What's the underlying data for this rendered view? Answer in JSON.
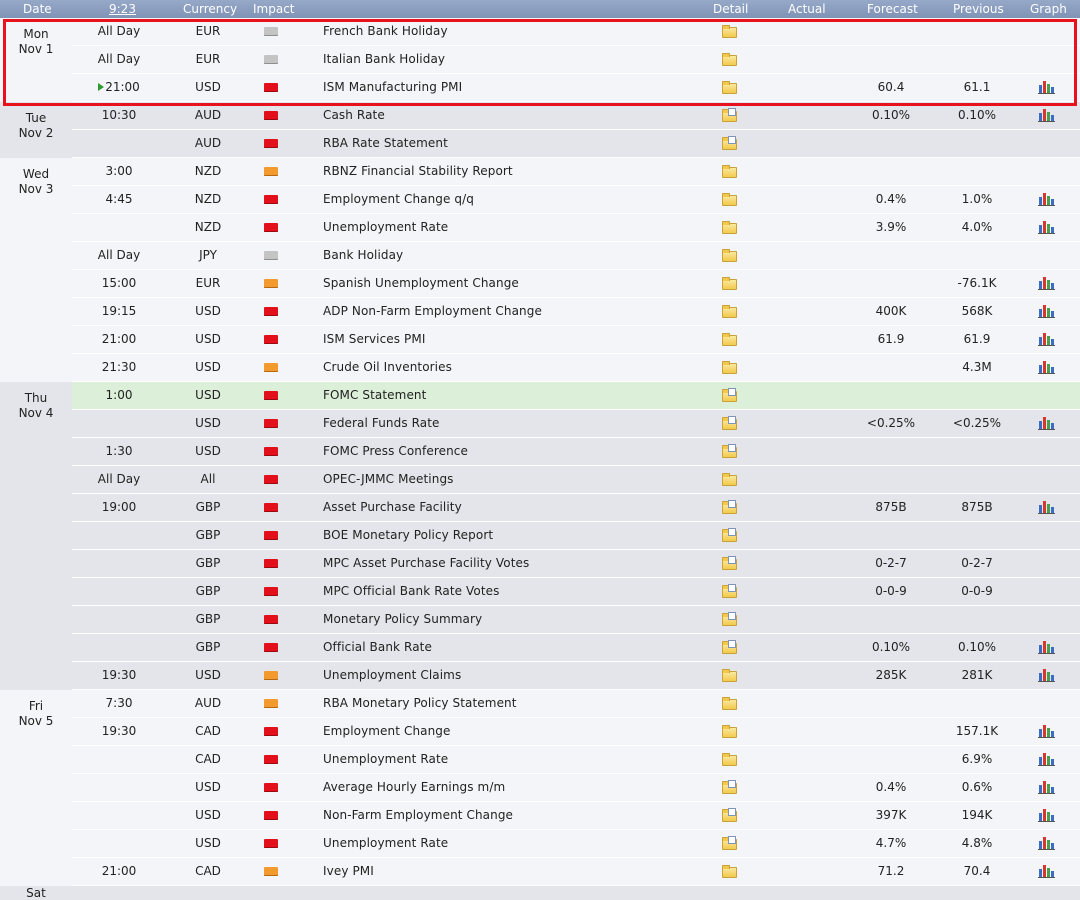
{
  "header": {
    "date": "Date",
    "time": "9:23",
    "currency": "Currency",
    "impact": "Impact",
    "detail": "Detail",
    "actual": "Actual",
    "forecast": "Forecast",
    "previous": "Previous",
    "graph": "Graph"
  },
  "icons": {
    "impact_colors": {
      "high": "#e2101a",
      "medium": "#f39a2e",
      "low": "#c4c4c4"
    },
    "detail": "folder-icon",
    "graph": "bar-chart-icon",
    "now": "play-icon"
  },
  "days": [
    {
      "dow": "Mon",
      "date": "Nov 1",
      "events": [
        {
          "time": "All Day",
          "currency": "EUR",
          "impact": "low",
          "event": "French Bank Holiday",
          "detail": "folder",
          "actual": "",
          "forecast": "",
          "previous": "",
          "graph": false
        },
        {
          "time": "All Day",
          "currency": "EUR",
          "impact": "low",
          "event": "Italian Bank Holiday",
          "detail": "folder",
          "actual": "",
          "forecast": "",
          "previous": "",
          "graph": false
        },
        {
          "time": "21:00",
          "now": true,
          "currency": "USD",
          "impact": "high",
          "event": "ISM Manufacturing PMI",
          "detail": "folder",
          "actual": "",
          "forecast": "60.4",
          "previous": "61.1",
          "graph": true
        }
      ]
    },
    {
      "dow": "Tue",
      "date": "Nov 2",
      "events": [
        {
          "time": "10:30",
          "currency": "AUD",
          "impact": "high",
          "event": "Cash Rate",
          "detail": "doc",
          "actual": "",
          "forecast": "0.10%",
          "previous": "0.10%",
          "graph": true
        },
        {
          "time": "",
          "currency": "AUD",
          "impact": "high",
          "event": "RBA Rate Statement",
          "detail": "doc",
          "actual": "",
          "forecast": "",
          "previous": "",
          "graph": false
        }
      ]
    },
    {
      "dow": "Wed",
      "date": "Nov 3",
      "events": [
        {
          "time": "3:00",
          "currency": "NZD",
          "impact": "medium",
          "event": "RBNZ Financial Stability Report",
          "detail": "folder",
          "actual": "",
          "forecast": "",
          "previous": "",
          "graph": false
        },
        {
          "time": "4:45",
          "currency": "NZD",
          "impact": "high",
          "event": "Employment Change q/q",
          "detail": "folder",
          "actual": "",
          "forecast": "0.4%",
          "previous": "1.0%",
          "graph": true
        },
        {
          "time": "",
          "currency": "NZD",
          "impact": "high",
          "event": "Unemployment Rate",
          "detail": "folder",
          "actual": "",
          "forecast": "3.9%",
          "previous": "4.0%",
          "graph": true
        },
        {
          "time": "All Day",
          "currency": "JPY",
          "impact": "low",
          "event": "Bank Holiday",
          "detail": "folder",
          "actual": "",
          "forecast": "",
          "previous": "",
          "graph": false
        },
        {
          "time": "15:00",
          "currency": "EUR",
          "impact": "medium",
          "event": "Spanish Unemployment Change",
          "detail": "folder",
          "actual": "",
          "forecast": "",
          "previous": "-76.1K",
          "graph": true
        },
        {
          "time": "19:15",
          "currency": "USD",
          "impact": "high",
          "event": "ADP Non-Farm Employment Change",
          "detail": "folder",
          "actual": "",
          "forecast": "400K",
          "previous": "568K",
          "graph": true
        },
        {
          "time": "21:00",
          "currency": "USD",
          "impact": "high",
          "event": "ISM Services PMI",
          "detail": "folder",
          "actual": "",
          "forecast": "61.9",
          "previous": "61.9",
          "graph": true
        },
        {
          "time": "21:30",
          "currency": "USD",
          "impact": "medium",
          "event": "Crude Oil Inventories",
          "detail": "folder",
          "actual": "",
          "forecast": "",
          "previous": "4.3M",
          "graph": true
        }
      ]
    },
    {
      "dow": "Thu",
      "date": "Nov 4",
      "events": [
        {
          "time": "1:00",
          "currency": "USD",
          "impact": "high",
          "event": "FOMC Statement",
          "detail": "doc",
          "actual": "",
          "forecast": "",
          "previous": "",
          "graph": false,
          "highlight": true
        },
        {
          "time": "",
          "currency": "USD",
          "impact": "high",
          "event": "Federal Funds Rate",
          "detail": "doc",
          "actual": "",
          "forecast": "<0.25%",
          "previous": "<0.25%",
          "graph": true
        },
        {
          "time": "1:30",
          "currency": "USD",
          "impact": "high",
          "event": "FOMC Press Conference",
          "detail": "doc",
          "actual": "",
          "forecast": "",
          "previous": "",
          "graph": false
        },
        {
          "time": "All Day",
          "currency": "All",
          "impact": "high",
          "event": "OPEC-JMMC Meetings",
          "detail": "folder",
          "actual": "",
          "forecast": "",
          "previous": "",
          "graph": false
        },
        {
          "time": "19:00",
          "currency": "GBP",
          "impact": "high",
          "event": "Asset Purchase Facility",
          "detail": "doc",
          "actual": "",
          "forecast": "875B",
          "previous": "875B",
          "graph": true
        },
        {
          "time": "",
          "currency": "GBP",
          "impact": "high",
          "event": "BOE Monetary Policy Report",
          "detail": "doc",
          "actual": "",
          "forecast": "",
          "previous": "",
          "graph": false
        },
        {
          "time": "",
          "currency": "GBP",
          "impact": "high",
          "event": "MPC Asset Purchase Facility Votes",
          "detail": "doc",
          "actual": "",
          "forecast": "0-2-7",
          "previous": "0-2-7",
          "graph": false
        },
        {
          "time": "",
          "currency": "GBP",
          "impact": "high",
          "event": "MPC Official Bank Rate Votes",
          "detail": "doc",
          "actual": "",
          "forecast": "0-0-9",
          "previous": "0-0-9",
          "graph": false
        },
        {
          "time": "",
          "currency": "GBP",
          "impact": "high",
          "event": "Monetary Policy Summary",
          "detail": "doc",
          "actual": "",
          "forecast": "",
          "previous": "",
          "graph": false
        },
        {
          "time": "",
          "currency": "GBP",
          "impact": "high",
          "event": "Official Bank Rate",
          "detail": "doc",
          "actual": "",
          "forecast": "0.10%",
          "previous": "0.10%",
          "graph": true
        },
        {
          "time": "19:30",
          "currency": "USD",
          "impact": "medium",
          "event": "Unemployment Claims",
          "detail": "folder",
          "actual": "",
          "forecast": "285K",
          "previous": "281K",
          "graph": true
        }
      ]
    },
    {
      "dow": "Fri",
      "date": "Nov 5",
      "events": [
        {
          "time": "7:30",
          "currency": "AUD",
          "impact": "medium",
          "event": "RBA Monetary Policy Statement",
          "detail": "folder",
          "actual": "",
          "forecast": "",
          "previous": "",
          "graph": false
        },
        {
          "time": "19:30",
          "currency": "CAD",
          "impact": "high",
          "event": "Employment Change",
          "detail": "folder",
          "actual": "",
          "forecast": "",
          "previous": "157.1K",
          "graph": true
        },
        {
          "time": "",
          "currency": "CAD",
          "impact": "high",
          "event": "Unemployment Rate",
          "detail": "folder",
          "actual": "",
          "forecast": "",
          "previous": "6.9%",
          "graph": true
        },
        {
          "time": "",
          "currency": "USD",
          "impact": "high",
          "event": "Average Hourly Earnings m/m",
          "detail": "doc",
          "actual": "",
          "forecast": "0.4%",
          "previous": "0.6%",
          "graph": true
        },
        {
          "time": "",
          "currency": "USD",
          "impact": "high",
          "event": "Non-Farm Employment Change",
          "detail": "doc",
          "actual": "",
          "forecast": "397K",
          "previous": "194K",
          "graph": true
        },
        {
          "time": "",
          "currency": "USD",
          "impact": "high",
          "event": "Unemployment Rate",
          "detail": "doc",
          "actual": "",
          "forecast": "4.7%",
          "previous": "4.8%",
          "graph": true
        },
        {
          "time": "21:00",
          "currency": "CAD",
          "impact": "medium",
          "event": "Ivey PMI",
          "detail": "folder",
          "actual": "",
          "forecast": "71.2",
          "previous": "70.4",
          "graph": true
        }
      ]
    }
  ],
  "next_day": {
    "dow": "Sat"
  }
}
